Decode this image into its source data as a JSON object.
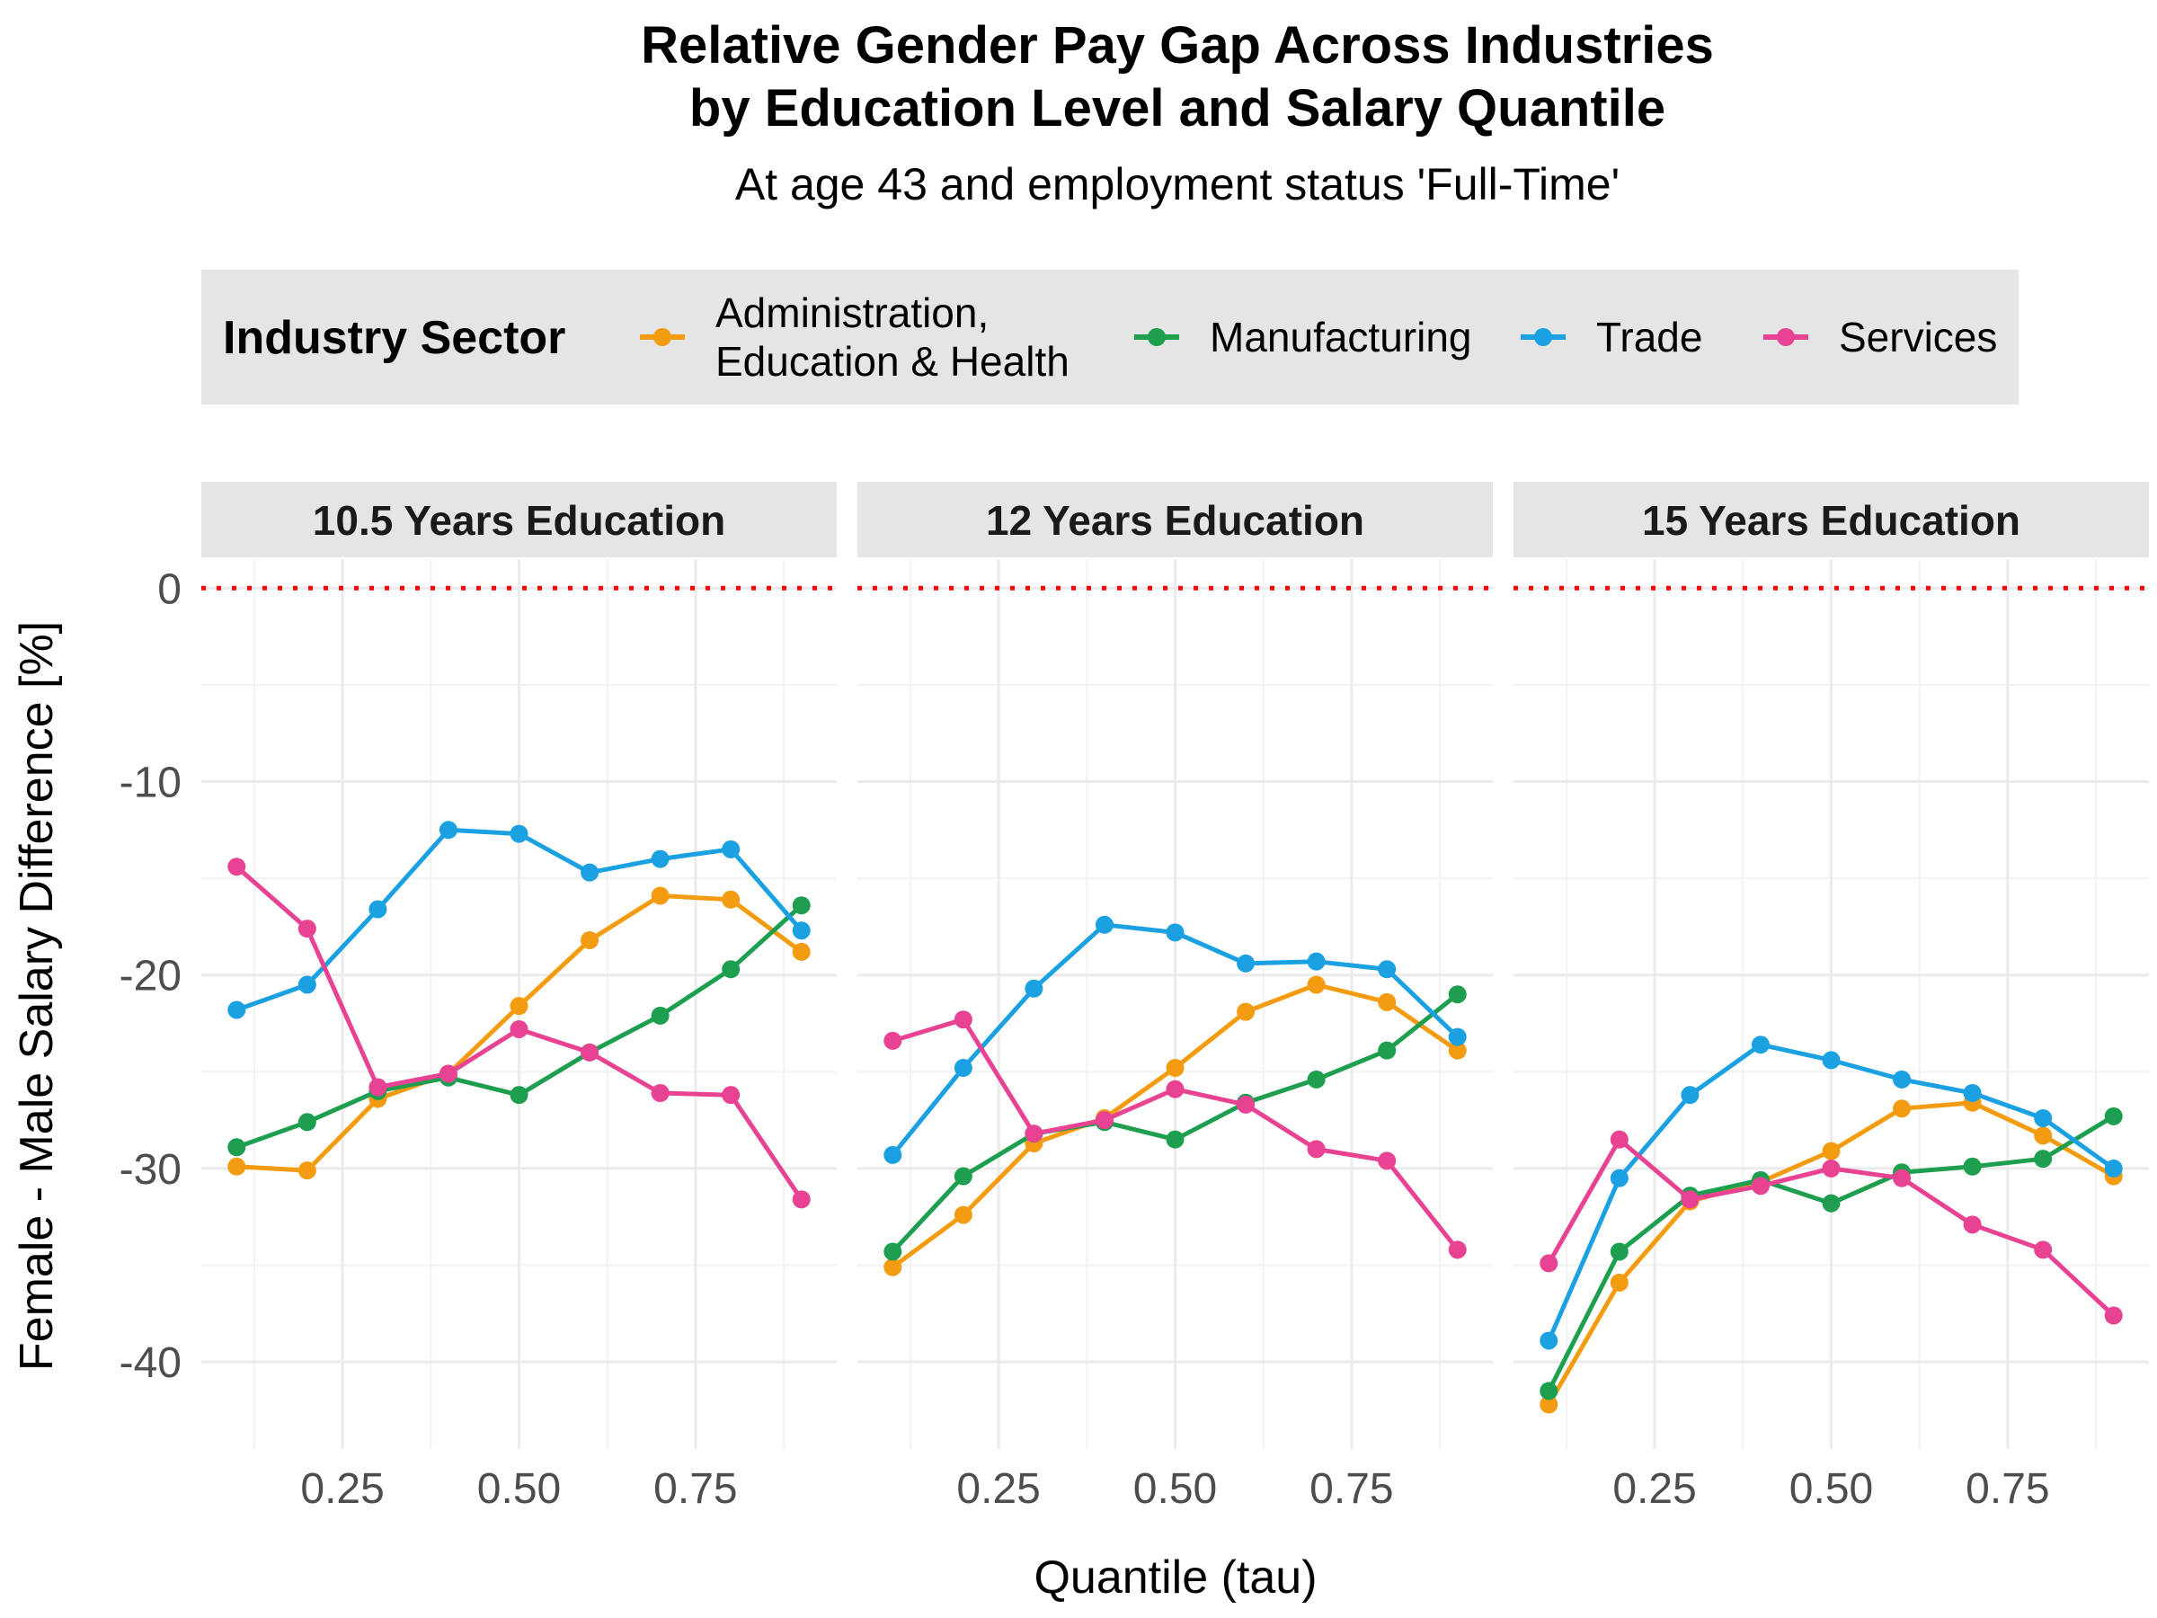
{
  "chart_data": {
    "type": "line",
    "title_lines": [
      "Relative Gender Pay Gap Across Industries",
      "by Education Level and Salary Quantile"
    ],
    "subtitle": "At age 43 and employment status 'Full-Time'",
    "xlabel": "Quantile (tau)",
    "ylabel": "Female - Male Salary Difference [%]",
    "legend": {
      "title": "Industry Sector",
      "position": "top",
      "entries": [
        {
          "label_lines": [
            "Administration,",
            "Education & Health"
          ],
          "color": "#F39C12"
        },
        {
          "label_lines": [
            "Manufacturing"
          ],
          "color": "#1E9E4F"
        },
        {
          "label_lines": [
            "Trade"
          ],
          "color": "#1BA1E2"
        },
        {
          "label_lines": [
            "Services"
          ],
          "color": "#E84393"
        }
      ]
    },
    "xlim": [
      0.05,
      0.95
    ],
    "ylim": [
      -44.5,
      1.5
    ],
    "x_ticks": [
      0.25,
      0.5,
      0.75
    ],
    "x_tick_labels": [
      "0.25",
      "0.50",
      "0.75"
    ],
    "y_ticks": [
      0,
      -10,
      -20,
      -30,
      -40
    ],
    "y_tick_labels": [
      "0",
      "-10",
      "-20",
      "-30",
      "-40"
    ],
    "y_minor_ticks": [
      -5,
      -15,
      -25,
      -35
    ],
    "x_minor_ticks": [
      0.125,
      0.375,
      0.625,
      0.875
    ],
    "grid": true,
    "reference_line": {
      "y": 0,
      "color": "#FF0000",
      "style": "dotted"
    },
    "x": [
      0.1,
      0.2,
      0.3,
      0.4,
      0.5,
      0.6,
      0.7,
      0.8,
      0.9
    ],
    "panels": [
      {
        "label": "10.5 Years Education",
        "series": [
          {
            "name": "Administration, Education & Health",
            "color": "#F39C12",
            "values": [
              -29.9,
              -30.1,
              -26.4,
              -25.1,
              -21.6,
              -18.2,
              -15.9,
              -16.1,
              -18.8
            ]
          },
          {
            "name": "Manufacturing",
            "color": "#1E9E4F",
            "values": [
              -28.9,
              -27.6,
              -26.0,
              -25.3,
              -26.2,
              -24.0,
              -22.1,
              -19.7,
              -16.4
            ]
          },
          {
            "name": "Trade",
            "color": "#1BA1E2",
            "values": [
              -21.8,
              -20.5,
              -16.6,
              -12.5,
              -12.7,
              -14.7,
              -14.0,
              -13.5,
              -17.7
            ]
          },
          {
            "name": "Services",
            "color": "#E84393",
            "values": [
              -14.4,
              -17.6,
              -25.8,
              -25.1,
              -22.8,
              -24.0,
              -26.1,
              -26.2,
              -31.6
            ]
          }
        ]
      },
      {
        "label": "12 Years Education",
        "series": [
          {
            "name": "Administration, Education & Health",
            "color": "#F39C12",
            "values": [
              -35.1,
              -32.4,
              -28.7,
              -27.4,
              -24.8,
              -21.9,
              -20.5,
              -21.4,
              -23.9
            ]
          },
          {
            "name": "Manufacturing",
            "color": "#1E9E4F",
            "values": [
              -34.3,
              -30.4,
              -28.2,
              -27.6,
              -28.5,
              -26.6,
              -25.4,
              -23.9,
              -21.0
            ]
          },
          {
            "name": "Trade",
            "color": "#1BA1E2",
            "values": [
              -29.3,
              -24.8,
              -20.7,
              -17.4,
              -17.8,
              -19.4,
              -19.3,
              -19.7,
              -23.2
            ]
          },
          {
            "name": "Services",
            "color": "#E84393",
            "values": [
              -23.4,
              -22.3,
              -28.2,
              -27.5,
              -25.9,
              -26.7,
              -29.0,
              -29.6,
              -34.2
            ]
          }
        ]
      },
      {
        "label": "15 Years Education",
        "series": [
          {
            "name": "Administration, Education & Health",
            "color": "#F39C12",
            "values": [
              -42.2,
              -35.9,
              -31.7,
              -30.7,
              -29.1,
              -26.9,
              -26.6,
              -28.3,
              -30.4
            ]
          },
          {
            "name": "Manufacturing",
            "color": "#1E9E4F",
            "values": [
              -41.5,
              -34.3,
              -31.4,
              -30.6,
              -31.8,
              -30.2,
              -29.9,
              -29.5,
              -27.3
            ]
          },
          {
            "name": "Trade",
            "color": "#1BA1E2",
            "values": [
              -38.9,
              -30.5,
              -26.2,
              -23.6,
              -24.4,
              -25.4,
              -26.1,
              -27.4,
              -30.0
            ]
          },
          {
            "name": "Services",
            "color": "#E84393",
            "values": [
              -34.9,
              -28.5,
              -31.6,
              -30.9,
              -30.0,
              -30.5,
              -32.9,
              -34.2,
              -37.6
            ]
          }
        ]
      }
    ]
  }
}
